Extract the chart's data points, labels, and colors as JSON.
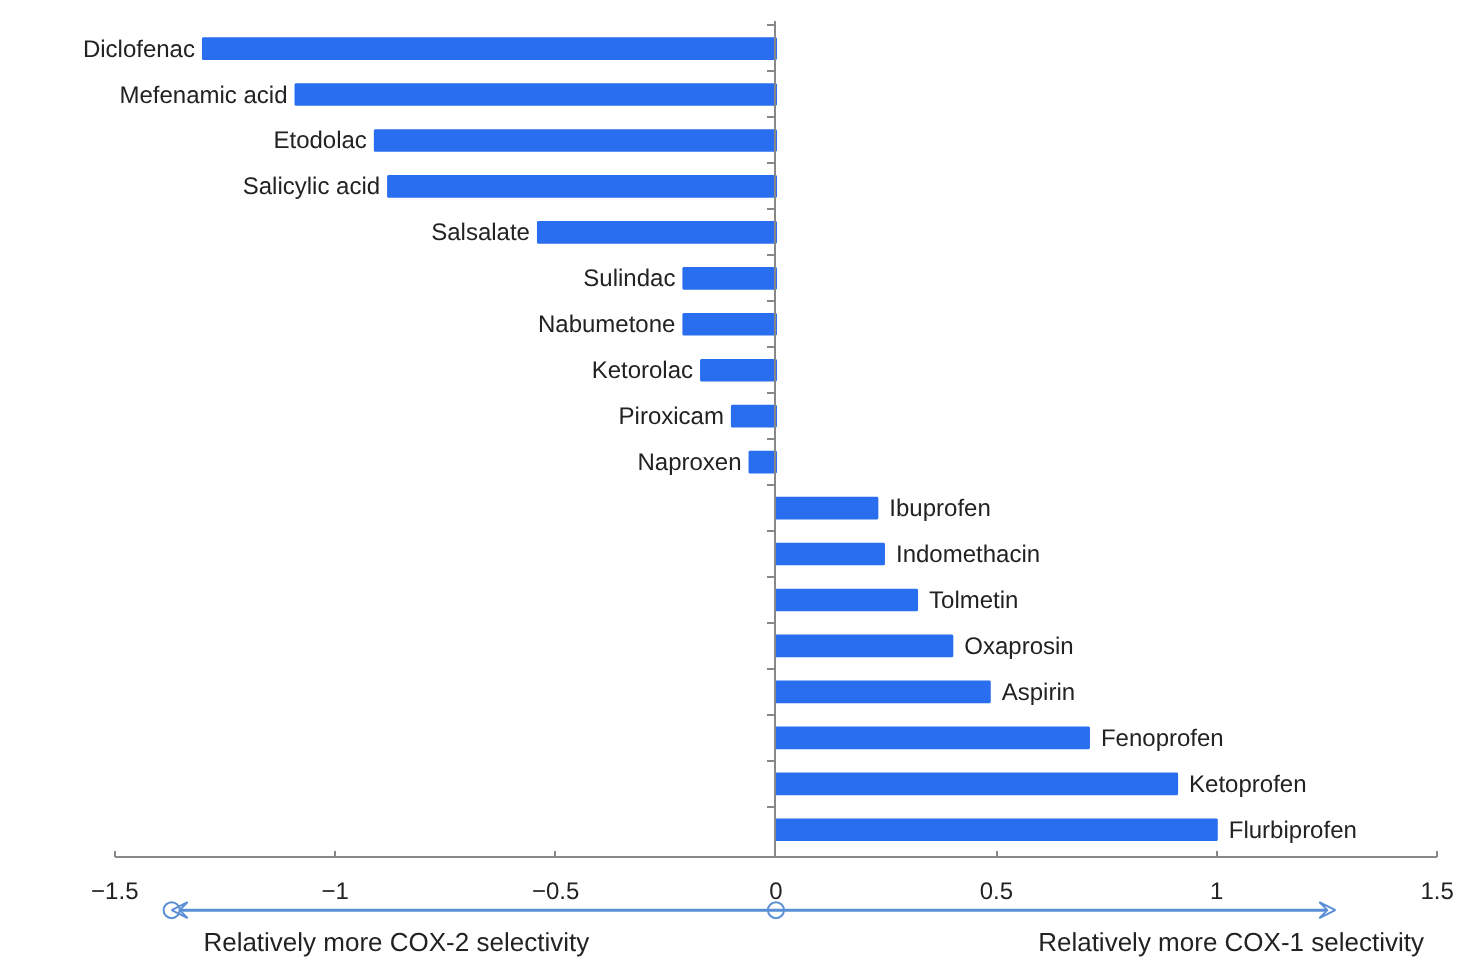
{
  "chart_data": {
    "type": "bar",
    "orientation": "horizontal",
    "categories": [
      "Diclofenac",
      "Mefenamic acid",
      "Etodolac",
      "Salicylic acid",
      "Salsalate",
      "Sulindac",
      "Nabumetone",
      "Ketorolac",
      "Piroxicam",
      "Naproxen",
      "Ibuprofen",
      "Indomethacin",
      "Tolmetin",
      "Oxaprosin",
      "Aspirin",
      "Fenoprofen",
      "Ketoprofen",
      "Flurbiprofen"
    ],
    "values": [
      -1.3,
      -1.09,
      -0.91,
      -0.88,
      -0.54,
      -0.21,
      -0.21,
      -0.17,
      -0.1,
      -0.06,
      0.23,
      0.245,
      0.32,
      0.4,
      0.485,
      0.71,
      0.91,
      1.0
    ],
    "color": "#2a6ef0",
    "xlim": [
      -1.5,
      1.5
    ],
    "xticks": [
      -1.5,
      -1,
      -0.5,
      0,
      0.5,
      1,
      1.5
    ],
    "annotations": [
      "Relatively more COX-2 selectivity",
      "Relatively more COX-1 selectivity"
    ]
  }
}
